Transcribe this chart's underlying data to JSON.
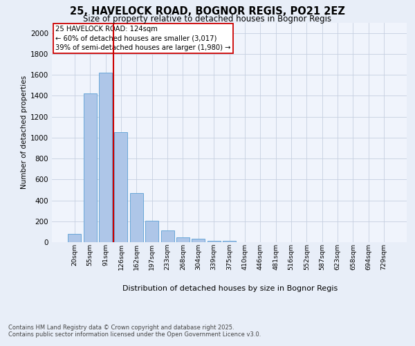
{
  "title_line1": "25, HAVELOCK ROAD, BOGNOR REGIS, PO21 2EZ",
  "title_line2": "Size of property relative to detached houses in Bognor Regis",
  "xlabel": "Distribution of detached houses by size in Bognor Regis",
  "ylabel": "Number of detached properties",
  "categories": [
    "20sqm",
    "55sqm",
    "91sqm",
    "126sqm",
    "162sqm",
    "197sqm",
    "233sqm",
    "268sqm",
    "304sqm",
    "339sqm",
    "375sqm",
    "410sqm",
    "446sqm",
    "481sqm",
    "516sqm",
    "552sqm",
    "587sqm",
    "623sqm",
    "658sqm",
    "694sqm",
    "729sqm"
  ],
  "values": [
    80,
    1420,
    1620,
    1050,
    470,
    205,
    110,
    45,
    30,
    15,
    15,
    0,
    0,
    0,
    0,
    0,
    0,
    0,
    0,
    0,
    0
  ],
  "bar_color": "#aec6e8",
  "bar_edge_color": "#5a9fd4",
  "red_line_x": 2.5,
  "annotation_title": "25 HAVELOCK ROAD: 124sqm",
  "annotation_line1": "← 60% of detached houses are smaller (3,017)",
  "annotation_line2": "39% of semi-detached houses are larger (1,980) →",
  "annotation_box_color": "#ffffff",
  "annotation_box_edge_color": "#cc0000",
  "ylim": [
    0,
    2100
  ],
  "yticks": [
    0,
    200,
    400,
    600,
    800,
    1000,
    1200,
    1400,
    1600,
    1800,
    2000
  ],
  "footer_line1": "Contains HM Land Registry data © Crown copyright and database right 2025.",
  "footer_line2": "Contains public sector information licensed under the Open Government Licence v3.0.",
  "bg_color": "#e8eef8",
  "plot_bg_color": "#f0f4fc",
  "grid_color": "#c5cfe0"
}
